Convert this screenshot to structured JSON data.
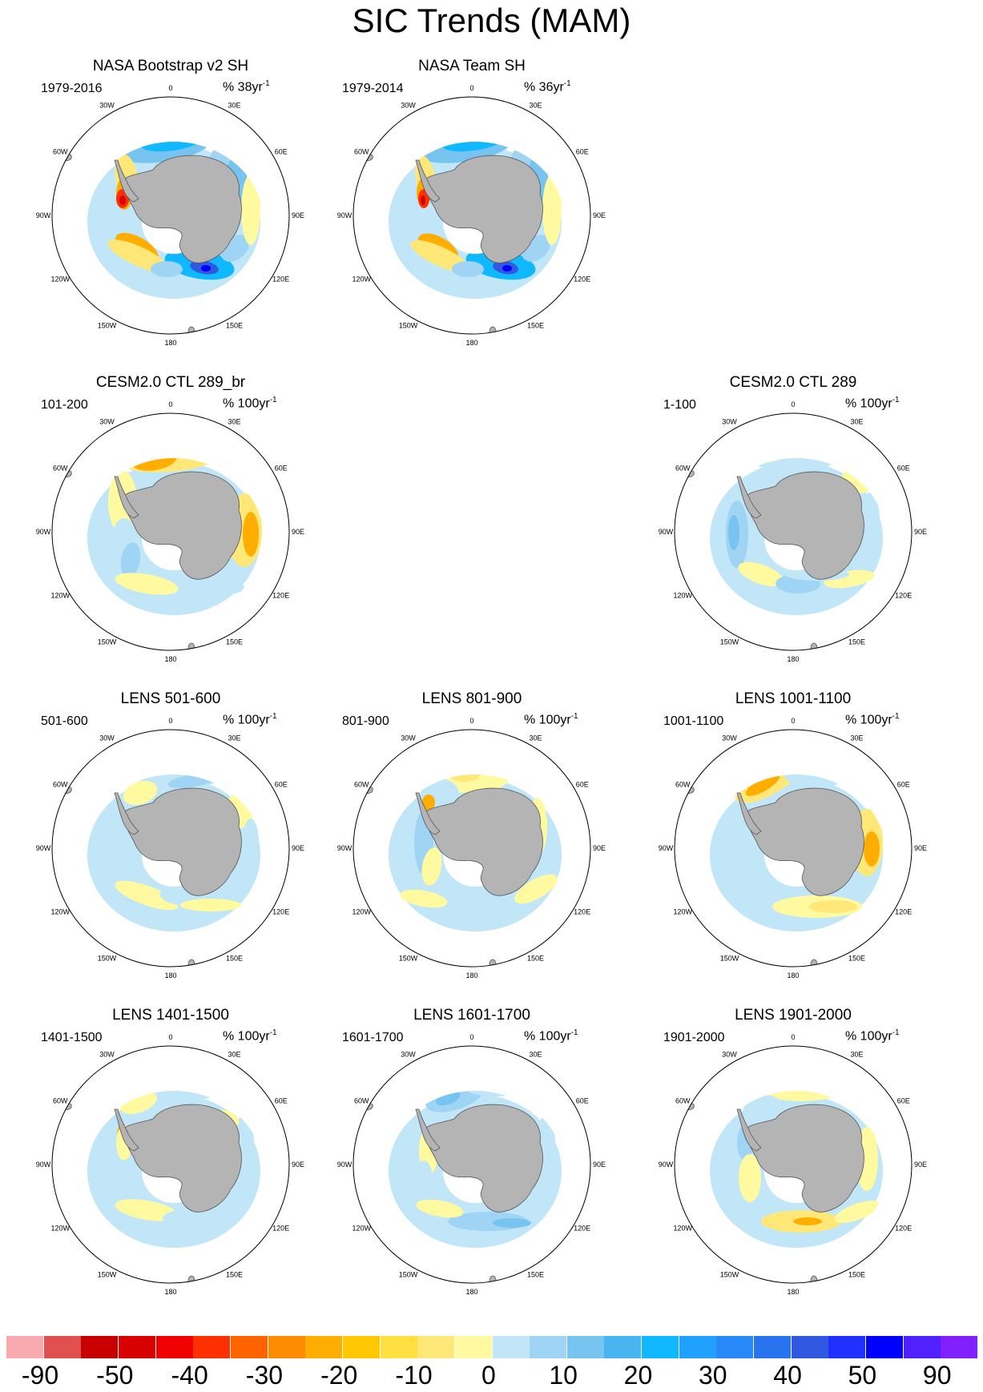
{
  "title": "SIC Trends (MAM)",
  "longitude_labels": {
    "n": "0",
    "ne30": "30E",
    "ne60": "60E",
    "e90": "90E",
    "se120": "120E",
    "se150": "150E",
    "s": "180",
    "sw150": "150W",
    "sw120": "120W",
    "w90": "90W",
    "nw60": "60W",
    "nw30": "30W"
  },
  "panels": [
    {
      "title": "NASA Bootstrap v2 SH",
      "period": "1979-2016",
      "units": "% 38yr",
      "units_exp": "-1",
      "pattern": "obs1"
    },
    {
      "title": "NASA Team SH",
      "period": "1979-2014",
      "units": "% 36yr",
      "units_exp": "-1",
      "pattern": "obs2"
    },
    {
      "title": "CESM2.0 CTL 289_br",
      "period": "101-200",
      "units": "% 100yr",
      "units_exp": "-1",
      "pattern": "ctlbr"
    },
    {
      "title": "CESM2.0 CTL 289",
      "period": "1-100",
      "units": "% 100yr",
      "units_exp": "-1",
      "pattern": "ctl"
    },
    {
      "title": "LENS 501-600",
      "period": "501-600",
      "units": "% 100yr",
      "units_exp": "-1",
      "pattern": "l501"
    },
    {
      "title": "LENS 801-900",
      "period": "801-900",
      "units": "% 100yr",
      "units_exp": "-1",
      "pattern": "l801"
    },
    {
      "title": "LENS 1001-1100",
      "period": "1001-1100",
      "units": "% 100yr",
      "units_exp": "-1",
      "pattern": "l1001"
    },
    {
      "title": "LENS 1401-1500",
      "period": "1401-1500",
      "units": "% 100yr",
      "units_exp": "-1",
      "pattern": "l1401"
    },
    {
      "title": "LENS 1601-1700",
      "period": "1601-1700",
      "units": "% 100yr",
      "units_exp": "-1",
      "pattern": "l1601"
    },
    {
      "title": "LENS 1901-2000",
      "period": "1901-2000",
      "units": "% 100yr",
      "units_exp": "-1",
      "pattern": "l1901"
    }
  ],
  "colorbar": {
    "colors": [
      "#f8aaae",
      "#e0504e",
      "#c80000",
      "#d80000",
      "#f00000",
      "#ff3000",
      "#ff6400",
      "#ff8c00",
      "#ffae00",
      "#ffc800",
      "#ffe040",
      "#ffe878",
      "#fffaa0",
      "#c0e6f8",
      "#a0d4f4",
      "#78c4f0",
      "#48b4f0",
      "#10b8ff",
      "#20a0ff",
      "#2888f8",
      "#2874f0",
      "#3058e0",
      "#2030ff",
      "#0000ff",
      "#5020ff",
      "#8020ff"
    ],
    "labels": [
      "-90",
      "-50",
      "-40",
      "-30",
      "-20",
      "-10",
      "0",
      "10",
      "20",
      "30",
      "40",
      "50",
      "90"
    ]
  }
}
